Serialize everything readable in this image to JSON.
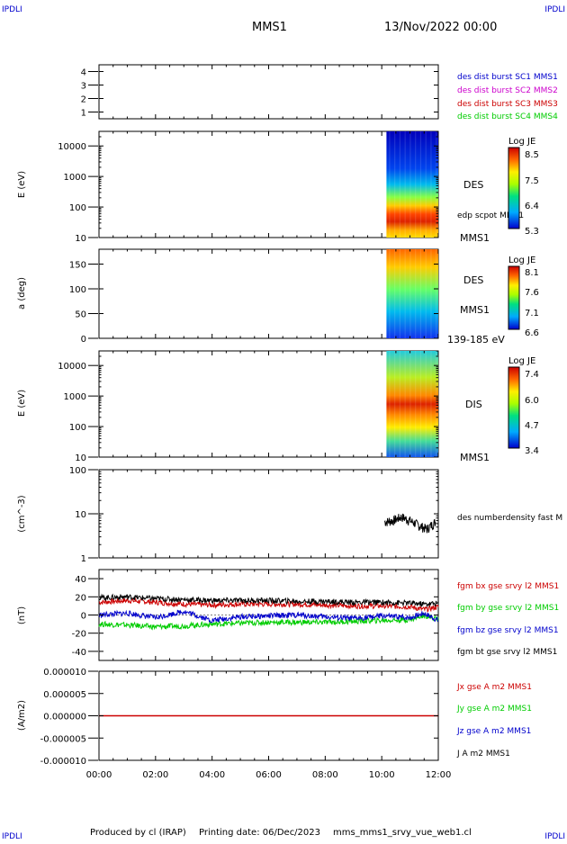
{
  "corner_label": "IPDLI",
  "header": {
    "spacecraft": "MMS1",
    "datetime": "13/Nov/2022 00:00"
  },
  "footer": {
    "produced_by": "Produced by cl (IRAP)",
    "printing_date": "Printing date: 06/Dec/2023",
    "plot_name": "mms_mms1_srvy_vue_web1.cl"
  },
  "colors": {
    "des_blue": "#0000cc",
    "mms2_magenta": "#cc00cc",
    "mms3_red": "#cc0000",
    "mms4_green": "#00cc00",
    "line_black": "#000000"
  },
  "chart_data": {
    "type": "stacked-panels",
    "xaxis": {
      "range": [
        "00:00",
        "12:00"
      ],
      "ticks": [
        "00:00",
        "02:00",
        "04:00",
        "06:00",
        "08:00",
        "10:00",
        "12:00"
      ]
    },
    "panels": [
      {
        "id": "availability",
        "type": "bar",
        "ylim": [
          0.5,
          4.5
        ],
        "yticks": [
          "4",
          "3",
          "2",
          "1"
        ],
        "legend": [
          {
            "name": "des dist burst SC1 MMS1",
            "color": "#0000cc"
          },
          {
            "name": "des dist burst SC2 MMS2",
            "color": "#cc00cc"
          },
          {
            "name": "des dist burst SC3 MMS3",
            "color": "#cc0000"
          },
          {
            "name": "des dist burst SC4 MMS4",
            "color": "#00cc00"
          }
        ]
      },
      {
        "id": "des-energy",
        "type": "heatmap",
        "ylabel": "E (eV)",
        "scale": "log",
        "ylim": [
          10,
          30000
        ],
        "yticks": [
          "10000",
          "1000",
          "100",
          "10"
        ],
        "data_interval": [
          "10:10",
          "12:00"
        ],
        "label": "DES",
        "overlay": "edp scpot MMS1",
        "mms_label": "MMS1",
        "colorbar": {
          "title": "Log JE",
          "ticks": [
            "8.5",
            "7.5",
            "6.4",
            "5.3"
          ],
          "range": [
            5.3,
            8.5
          ]
        }
      },
      {
        "id": "des-pitch",
        "type": "heatmap",
        "ylabel": "a (deg)",
        "ylim": [
          0,
          180
        ],
        "yticks": [
          "150",
          "100",
          "50",
          "0"
        ],
        "data_interval": [
          "10:10",
          "12:00"
        ],
        "label": "DES",
        "mms_label": "MMS1",
        "energy_range": "139-185 eV",
        "colorbar": {
          "title": "Log JE",
          "ticks": [
            "8.1",
            "7.6",
            "7.1",
            "6.6"
          ],
          "range": [
            6.6,
            8.1
          ]
        }
      },
      {
        "id": "dis-energy",
        "type": "heatmap",
        "ylabel": "E (eV)",
        "scale": "log",
        "ylim": [
          10,
          30000
        ],
        "yticks": [
          "10000",
          "1000",
          "100",
          "10"
        ],
        "data_interval": [
          "10:10",
          "12:00"
        ],
        "label": "DIS",
        "mms_label": "MMS1",
        "colorbar": {
          "title": "Log JE",
          "ticks": [
            "7.4",
            "6.0",
            "4.7",
            "3.4"
          ],
          "range": [
            3.4,
            7.4
          ]
        }
      },
      {
        "id": "density",
        "type": "line",
        "ylabel": "(cm^-3)",
        "scale": "log",
        "ylim": [
          1,
          100
        ],
        "yticks": [
          "100",
          "10",
          "1"
        ],
        "legend": [
          {
            "name": "des numberdensity fast M",
            "color": "#000000"
          }
        ],
        "series": [
          {
            "x": [
              10.1,
              10.4,
              10.7,
              11.0,
              11.3,
              11.6,
              11.9
            ],
            "y": [
              6.5,
              7,
              8.5,
              7,
              5.5,
              4.5,
              6.5
            ]
          }
        ]
      },
      {
        "id": "bfield",
        "type": "line",
        "ylabel": "(nT)",
        "ylim": [
          -50,
          50
        ],
        "yticks": [
          "40",
          "20",
          "0",
          "-20",
          "-40"
        ],
        "legend": [
          {
            "name": "fgm bx gse srvy l2 MMS1",
            "color": "#cc0000"
          },
          {
            "name": "fgm by gse srvy l2 MMS1",
            "color": "#00cc00"
          },
          {
            "name": "fgm bz gse srvy l2 MMS1",
            "color": "#0000cc"
          },
          {
            "name": "fgm bt gse srvy l2 MMS1",
            "color": "#000000"
          }
        ],
        "series": [
          {
            "x": [
              0,
              1,
              2,
              3,
              4,
              5,
              6,
              7,
              8,
              9,
              10,
              11,
              11.5,
              12
            ],
            "y": [
              14,
              16,
              14,
              12,
              11,
              12,
              12,
              12,
              11,
              10,
              10,
              9,
              6,
              9
            ]
          },
          {
            "x": [
              0,
              1,
              2,
              3,
              4,
              5,
              6,
              7,
              8,
              9,
              10,
              11,
              11.5,
              12
            ],
            "y": [
              -10,
              -11,
              -13,
              -12,
              -10,
              -9,
              -8,
              -8,
              -8,
              -7,
              -6,
              -5,
              0,
              -5
            ]
          },
          {
            "x": [
              0,
              1,
              2,
              3,
              4,
              5,
              6,
              7,
              8,
              9,
              10,
              11,
              11.5,
              12
            ],
            "y": [
              0,
              2,
              -3,
              4,
              -6,
              -2,
              -1,
              0,
              -2,
              -4,
              -1,
              -3,
              2,
              -6
            ]
          },
          {
            "x": [
              0,
              1,
              2,
              3,
              4,
              5,
              6,
              7,
              8,
              9,
              10,
              11,
              11.5,
              12
            ],
            "y": [
              19,
              20,
              18,
              17,
              16,
              16,
              16,
              15,
              15,
              14,
              14,
              13,
              12,
              13
            ]
          }
        ]
      },
      {
        "id": "current",
        "type": "line",
        "ylabel": "(A/m2)",
        "ylim": [
          -1e-05,
          1e-05
        ],
        "yticks": [
          "0.000010",
          "0.000005",
          "0.000000",
          "-0.000005",
          "-0.000010"
        ],
        "legend": [
          {
            "name": "Jx gse A m2 MMS1",
            "color": "#cc0000"
          },
          {
            "name": "Jy gse A m2 MMS1",
            "color": "#00cc00"
          },
          {
            "name": "Jz gse A m2 MMS1",
            "color": "#0000cc"
          },
          {
            "name": "J A m2 MMS1",
            "color": "#000000"
          }
        ],
        "series": [
          {
            "x": [
              0,
              12
            ],
            "y": [
              0,
              0
            ]
          }
        ]
      }
    ]
  }
}
